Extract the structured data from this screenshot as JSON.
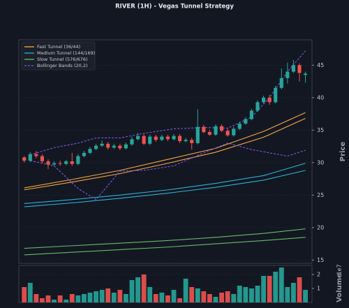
{
  "chart_data": {
    "type": "candlestick",
    "title": "RIVER (1H) - Vegas Tunnel Strategy",
    "y_label": "Price",
    "xlim": [
      -0.9,
      48.1
    ],
    "ylim": [
      14.5,
      48.9
    ],
    "yticks": [
      15,
      20,
      25,
      30,
      35,
      40,
      45
    ],
    "grid": true,
    "legend_loc": "upper left",
    "up_color": "#26a69a",
    "down_color": "#ef5350",
    "candles": {
      "open": [
        30.8,
        30.3,
        31.3,
        31.0,
        30.2,
        29.7,
        29.9,
        29.8,
        30.2,
        29.8,
        31.0,
        31.5,
        32.1,
        32.6,
        32.9,
        32.3,
        32.6,
        32.2,
        32.8,
        33.6,
        34.1,
        32.9,
        34.0,
        33.5,
        34.0,
        33.6,
        34.1,
        33.3,
        33.5,
        33.0,
        35.5,
        34.7,
        34.3,
        35.6,
        34.9,
        34.2,
        35.2,
        36.0,
        36.7,
        38.0,
        39.3,
        40.0,
        39.3,
        41.5,
        43.0,
        44.0,
        45.0,
        43.5
      ],
      "high": [
        31.0,
        31.6,
        31.8,
        31.3,
        30.5,
        30.2,
        30.3,
        30.4,
        31.5,
        31.3,
        31.8,
        32.4,
        32.9,
        33.4,
        33.2,
        32.9,
        32.9,
        33.1,
        34.0,
        34.6,
        34.4,
        34.3,
        34.3,
        34.3,
        34.3,
        34.4,
        34.4,
        33.8,
        33.8,
        38.2,
        35.8,
        35.0,
        35.9,
        35.9,
        35.2,
        35.5,
        36.3,
        37.0,
        38.3,
        39.6,
        40.3,
        40.4,
        41.8,
        44.5,
        45.4,
        45.8,
        45.3,
        44.0
      ],
      "low": [
        30.0,
        30.1,
        30.7,
        29.9,
        29.0,
        29.5,
        29.5,
        29.6,
        29.5,
        29.6,
        30.8,
        31.3,
        31.9,
        32.4,
        32.0,
        32.1,
        31.9,
        32.0,
        32.6,
        33.4,
        32.7,
        32.7,
        33.2,
        33.3,
        33.3,
        33.4,
        33.0,
        33.1,
        32.0,
        32.8,
        34.5,
        34.1,
        34.1,
        34.7,
        34.0,
        34.0,
        35.0,
        35.8,
        36.5,
        37.8,
        39.1,
        38.9,
        39.1,
        41.3,
        42.2,
        43.8,
        42.5,
        42.3
      ],
      "close": [
        30.3,
        31.3,
        31.0,
        30.2,
        29.7,
        29.9,
        29.8,
        30.2,
        29.8,
        31.0,
        31.5,
        32.1,
        32.6,
        32.9,
        32.3,
        32.6,
        32.2,
        32.8,
        33.6,
        34.1,
        32.9,
        34.0,
        33.5,
        34.0,
        33.6,
        34.1,
        33.3,
        33.5,
        33.0,
        35.5,
        34.7,
        34.3,
        35.6,
        34.9,
        34.2,
        35.2,
        36.0,
        36.7,
        38.0,
        39.3,
        40.0,
        39.3,
        41.5,
        43.0,
        44.0,
        45.0,
        43.8,
        43.7
      ]
    },
    "overlays": [
      {
        "name": "Fast Tunnel (36/44)",
        "color": "#f5a742",
        "dash": false,
        "x": [
          0,
          8,
          16,
          24,
          32,
          40,
          47
        ],
        "lines": [
          [
            26.1,
            27.4,
            28.8,
            30.5,
            32.2,
            34.8,
            37.7
          ],
          [
            25.8,
            27.0,
            28.3,
            29.9,
            31.6,
            33.9,
            36.8
          ]
        ]
      },
      {
        "name": "Medium Tunnel (144/169)",
        "color": "#2bb3d4",
        "dash": false,
        "x": [
          0,
          8,
          16,
          24,
          32,
          40,
          47
        ],
        "lines": [
          [
            23.7,
            24.3,
            25.0,
            25.8,
            26.8,
            28.0,
            29.9
          ],
          [
            23.2,
            23.8,
            24.5,
            25.3,
            26.2,
            27.3,
            28.8
          ]
        ]
      },
      {
        "name": "Slow Tunnel (576/676)",
        "color": "#66bb6a",
        "dash": false,
        "x": [
          0,
          8,
          16,
          24,
          32,
          40,
          47
        ],
        "lines": [
          [
            16.8,
            17.2,
            17.6,
            18.0,
            18.5,
            19.1,
            19.8
          ],
          [
            15.8,
            16.2,
            16.6,
            17.0,
            17.5,
            18.0,
            18.5
          ]
        ]
      },
      {
        "name": "Bollinger Bands (20,2)",
        "color": "#7b55e8",
        "dash": true,
        "x": [
          1,
          5,
          9,
          12,
          16,
          20,
          25,
          30,
          34,
          38,
          41,
          44,
          47
        ],
        "lines": [
          [
            31.2,
            32.3,
            33.0,
            33.8,
            33.8,
            34.5,
            35.2,
            35.4,
            35.3,
            37.0,
            40.0,
            44.0,
            47.2
          ],
          [
            30.3,
            29.5,
            26.0,
            24.3,
            28.7,
            28.8,
            29.5,
            31.5,
            33.0,
            32.0,
            31.5,
            31.0,
            31.9
          ]
        ]
      }
    ],
    "volume": {
      "label": "Volume",
      "offset_label": "1e7",
      "ylim": [
        0,
        2.65
      ],
      "yticks": [
        1,
        2
      ],
      "values": [
        1.1,
        1.4,
        0.6,
        0.3,
        0.5,
        0.2,
        0.5,
        0.2,
        0.6,
        0.5,
        0.6,
        0.7,
        0.8,
        0.9,
        1.0,
        0.7,
        0.9,
        0.6,
        1.6,
        1.8,
        2.0,
        1.1,
        0.6,
        0.7,
        0.5,
        0.9,
        0.3,
        1.7,
        1.1,
        1.0,
        0.8,
        0.6,
        0.4,
        0.7,
        0.8,
        0.6,
        1.2,
        1.1,
        1.0,
        1.2,
        1.9,
        1.9,
        2.2,
        2.5,
        1.1,
        1.4,
        1.8,
        0.9
      ]
    }
  }
}
